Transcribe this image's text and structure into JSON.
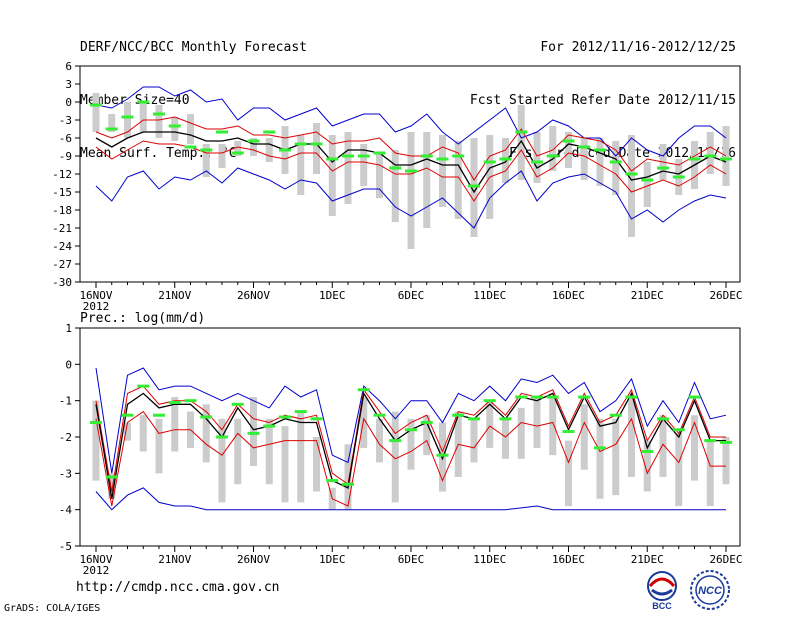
{
  "header": {
    "title": "DERF/NCC/BCC Monthly Forecast",
    "member_size": "Member Size=40",
    "variable": "Mean Surf. Temp.: °C",
    "period": "For 2012/11/16-2012/12/25",
    "fcst_started": "Fcst Started Refer Date 2012/11/15",
    "fcst_produced": "Fcst Produced Date 2012/11/16"
  },
  "footer": {
    "url": "http://cmdp.ncc.cma.gov.cn",
    "credit": "GrADS: COLA/IGES",
    "logo_bcc": "BCC",
    "logo_ncc": "NCC"
  },
  "colors": {
    "envelope": "#0000cc",
    "spread": "#dd0000",
    "mean": "#000000",
    "bar": "#cccccc",
    "marker": "#33ee33"
  },
  "chart_data": [
    {
      "type": "line",
      "title": "Mean Surf. Temp.: °C",
      "ylim": [
        -30,
        6
      ],
      "yticks": [
        6,
        3,
        0,
        -3,
        -6,
        -9,
        -12,
        -15,
        -18,
        -21,
        -24,
        -27,
        -30
      ],
      "xticks": [
        {
          "day": 0,
          "label": "16NOV"
        },
        {
          "day": 5,
          "label": "21NOV"
        },
        {
          "day": 10,
          "label": "26NOV"
        },
        {
          "day": 15,
          "label": "1DEC"
        },
        {
          "day": 20,
          "label": "6DEC"
        },
        {
          "day": 25,
          "label": "11DEC"
        },
        {
          "day": 30,
          "label": "16DEC"
        },
        {
          "day": 35,
          "label": "21DEC"
        },
        {
          "day": 40,
          "label": "26DEC"
        }
      ],
      "year_label": "2012",
      "series": [
        {
          "name": "max",
          "values": [
            -0.5,
            -1,
            0.5,
            2.5,
            2.5,
            1,
            2,
            0,
            0.5,
            -3,
            -1,
            -1,
            -3,
            -2,
            -1,
            -4,
            -3,
            -2,
            -2,
            -5,
            -4,
            -2,
            -5,
            -7,
            -5,
            -3,
            -1,
            -6,
            -5,
            -3,
            -4,
            -6,
            -6,
            -9,
            -6,
            -8,
            -9,
            -6,
            -4,
            -4,
            -6
          ]
        },
        {
          "name": "upper",
          "values": [
            -5,
            -6,
            -5,
            -3,
            -3,
            -2.5,
            -3.5,
            -4.5,
            -4.5,
            -4,
            -5.5,
            -5.5,
            -6,
            -5.5,
            -5,
            -7,
            -6.5,
            -6.5,
            -6,
            -8.5,
            -9,
            -9,
            -7.5,
            -8.5,
            -13,
            -9,
            -8,
            -4.5,
            -9,
            -8,
            -5.5,
            -6,
            -6.5,
            -8,
            -11.5,
            -9.5,
            -10,
            -10.5,
            -9,
            -7.5,
            -9
          ]
        },
        {
          "name": "mean",
          "values": [
            -6,
            -7.5,
            -6,
            -5,
            -5,
            -5,
            -5.5,
            -6.5,
            -6.5,
            -6,
            -7,
            -7,
            -8,
            -7,
            -7,
            -10,
            -8,
            -8,
            -8.5,
            -10.5,
            -10.5,
            -9.5,
            -10.5,
            -10.5,
            -15,
            -11,
            -10,
            -6.5,
            -11,
            -9.5,
            -7,
            -7.5,
            -8.5,
            -9.5,
            -13,
            -12.5,
            -11.5,
            -12,
            -10.5,
            -9,
            -10
          ]
        },
        {
          "name": "lower",
          "values": [
            -7.5,
            -9.5,
            -8,
            -6.5,
            -7,
            -7,
            -7.5,
            -8.5,
            -8.5,
            -7.5,
            -8,
            -9,
            -9.5,
            -8.5,
            -8.5,
            -11.5,
            -10,
            -10,
            -10.5,
            -12,
            -12,
            -11,
            -12.5,
            -12.5,
            -16.5,
            -12.5,
            -11.5,
            -8,
            -12.5,
            -11,
            -8.5,
            -9,
            -10.5,
            -12,
            -15,
            -14,
            -13,
            -14,
            -12.5,
            -10.5,
            -12
          ]
        },
        {
          "name": "min",
          "values": [
            -14,
            -16.5,
            -12.5,
            -11.5,
            -14.5,
            -12.5,
            -13,
            -11.5,
            -13.5,
            -11,
            -12,
            -13,
            -14.5,
            -13,
            -13.5,
            -16.5,
            -15.5,
            -14.5,
            -14.5,
            -17.5,
            -19,
            -17.5,
            -16,
            -18.5,
            -21,
            -16,
            -13.5,
            -11.5,
            -16.5,
            -13.5,
            -12.5,
            -12,
            -13.5,
            -15,
            -19.5,
            -18,
            -20,
            -18,
            -16.5,
            -15.5,
            -16
          ]
        },
        {
          "name": "bar_top",
          "values": [
            1.5,
            -2,
            0,
            0,
            -0.5,
            -2.5,
            -2,
            -7,
            -7,
            -6.5,
            -6,
            -6,
            -4,
            -5.5,
            -3.5,
            -5.5,
            -5,
            -7,
            -8.5,
            -8,
            -5,
            -5,
            -5.5,
            -6.5,
            -6,
            -5.5,
            -6,
            -0.5,
            -5,
            -4,
            -5,
            -6,
            -6,
            -6.5,
            -5.5,
            -10,
            -7,
            -9.5,
            -6.5,
            -5,
            -4
          ]
        },
        {
          "name": "bar_bottom",
          "values": [
            -5,
            -5,
            -6,
            -5,
            -6,
            -6.5,
            -7,
            -12.5,
            -11,
            -9,
            -9,
            -10,
            -12,
            -15.5,
            -12,
            -19,
            -17,
            -14,
            -16,
            -20,
            -24.5,
            -21,
            -17.5,
            -19.5,
            -22.5,
            -19.5,
            -13.5,
            -13,
            -13.5,
            -11.5,
            -11,
            -13,
            -14,
            -15.5,
            -22.5,
            -17.5,
            -13,
            -15.5,
            -14.5,
            -12,
            -14
          ]
        },
        {
          "name": "observed",
          "values": [
            -0.5,
            -4.5,
            -2.5,
            0,
            -2,
            -4,
            -7.5,
            -8,
            -5,
            -8.5,
            -6.5,
            -5,
            -8,
            -7,
            -7,
            -9.5,
            -9,
            -9,
            -8.5,
            -11,
            -11.5,
            -9,
            -9.5,
            -9,
            -14,
            -10,
            -9.5,
            -5,
            -10,
            -9,
            -6.5,
            -7.5,
            -8,
            -10,
            -12,
            -13,
            -11,
            -12.5,
            -9.5,
            -9,
            -9.5
          ]
        }
      ]
    },
    {
      "type": "line",
      "title": "Prec.: log(mm/d)",
      "ylim": [
        -5,
        1
      ],
      "yticks": [
        1,
        0,
        -1,
        -2,
        -3,
        -4,
        -5
      ],
      "xticks": [
        {
          "day": 0,
          "label": "16NOV"
        },
        {
          "day": 5,
          "label": "21NOV"
        },
        {
          "day": 10,
          "label": "26NOV"
        },
        {
          "day": 15,
          "label": "1DEC"
        },
        {
          "day": 20,
          "label": "6DEC"
        },
        {
          "day": 25,
          "label": "11DEC"
        },
        {
          "day": 30,
          "label": "16DEC"
        },
        {
          "day": 35,
          "label": "21DEC"
        },
        {
          "day": 40,
          "label": "26DEC"
        }
      ],
      "year_label": "2012",
      "series": [
        {
          "name": "max",
          "values": [
            -0.1,
            -3,
            -0.3,
            -0.1,
            -0.7,
            -0.6,
            -0.6,
            -0.8,
            -1,
            -0.8,
            -1,
            -1.2,
            -0.6,
            -0.9,
            -0.7,
            -2.5,
            -2.7,
            -0.6,
            -1,
            -1.5,
            -1,
            -1,
            -1.6,
            -0.8,
            -1,
            -0.6,
            -1,
            -0.4,
            -0.5,
            -0.3,
            -0.8,
            -0.5,
            -1.3,
            -1,
            -0.4,
            -1.7,
            -1,
            -1.6,
            -0.5,
            -1.5,
            -1.4
          ]
        },
        {
          "name": "upper",
          "values": [
            -1,
            -3.5,
            -0.8,
            -0.6,
            -1.1,
            -1,
            -1,
            -1.3,
            -1.8,
            -1.1,
            -1.5,
            -1.6,
            -1.4,
            -1.5,
            -1.4,
            -3,
            -3.3,
            -0.7,
            -1.3,
            -1.9,
            -1.6,
            -1.4,
            -2.4,
            -1.3,
            -1.4,
            -1,
            -1.4,
            -0.8,
            -0.9,
            -0.7,
            -1.7,
            -0.8,
            -1.6,
            -1.4,
            -0.7,
            -2.1,
            -1.4,
            -1.9,
            -0.9,
            -2,
            -2
          ]
        },
        {
          "name": "mean",
          "values": [
            -1.1,
            -3.7,
            -1.1,
            -0.8,
            -1.2,
            -1.1,
            -1.1,
            -1.5,
            -2,
            -1.2,
            -1.8,
            -1.7,
            -1.5,
            -1.6,
            -1.6,
            -3.2,
            -3.4,
            -0.8,
            -1.5,
            -2.1,
            -1.8,
            -1.6,
            -2.6,
            -1.4,
            -1.5,
            -1.1,
            -1.5,
            -0.9,
            -1,
            -0.8,
            -1.8,
            -0.9,
            -1.7,
            -1.6,
            -0.8,
            -2.3,
            -1.5,
            -2,
            -1,
            -2.1,
            -2.1
          ]
        },
        {
          "name": "lower",
          "values": [
            -1.5,
            -3.9,
            -1.6,
            -1.3,
            -1.9,
            -1.8,
            -1.8,
            -2.2,
            -2.5,
            -1.9,
            -2.3,
            -2.2,
            -2.1,
            -2.1,
            -2.1,
            -3.7,
            -3.9,
            -1.5,
            -2.2,
            -2.6,
            -2.4,
            -2.1,
            -3.2,
            -2.2,
            -2.3,
            -1.7,
            -2,
            -1.6,
            -1.7,
            -1.6,
            -2.7,
            -1.6,
            -2.4,
            -2.2,
            -1.5,
            -3,
            -2.2,
            -2.7,
            -1.6,
            -2.8,
            -2.8
          ]
        },
        {
          "name": "min",
          "values": [
            -3.5,
            -4,
            -3.6,
            -3.4,
            -3.8,
            -3.9,
            -3.9,
            -4,
            -4,
            -4,
            -4,
            -4,
            -4,
            -4,
            -4,
            -4,
            -4,
            -4,
            -4,
            -4,
            -4,
            -4,
            -4,
            -4,
            -4,
            -4,
            -4,
            -3.95,
            -3.9,
            -4,
            -4,
            -4,
            -4,
            -4,
            -4,
            -4,
            -4,
            -4,
            -4,
            -4,
            -4
          ]
        },
        {
          "name": "bar_top",
          "values": [
            -1,
            -3,
            -1.6,
            -1.4,
            -1.5,
            -0.9,
            -1.3,
            -1.1,
            -1.5,
            -1.5,
            -0.9,
            -1.5,
            -1.7,
            -1.3,
            -2,
            -3.4,
            -2.2,
            -0.9,
            -1.5,
            -1.3,
            -1.5,
            -1.4,
            -1.6,
            -1.3,
            -1.5,
            -1,
            -1.5,
            -1.2,
            -0.9,
            -0.9,
            -2.1,
            -1.1,
            -1.5,
            -1.5,
            -0.9,
            -2.1,
            -1.4,
            -1.9,
            -1.4,
            -2.1,
            -2
          ]
        },
        {
          "name": "bar_bottom",
          "values": [
            -3.2,
            -3.7,
            -2.1,
            -2.4,
            -3,
            -2.4,
            -2.3,
            -2.7,
            -3.8,
            -3.3,
            -2.8,
            -3.3,
            -3.8,
            -3.8,
            -3.5,
            -4,
            -4,
            -2.3,
            -2.7,
            -3.8,
            -2.9,
            -2.5,
            -3.5,
            -3.1,
            -2.7,
            -2.3,
            -2.6,
            -2.6,
            -2.3,
            -2.5,
            -3.9,
            -2.9,
            -3.7,
            -3.6,
            -3.1,
            -3.5,
            -3.1,
            -3.9,
            -3.2,
            -3.9,
            -3.3
          ]
        },
        {
          "name": "observed",
          "values": [
            -1.6,
            -3.1,
            -1.4,
            -0.6,
            -1.4,
            -1.05,
            -1,
            -1.45,
            -2,
            -1.1,
            -1.9,
            -1.7,
            -1.45,
            -1.3,
            -1.5,
            -3.2,
            -3.3,
            -0.7,
            -1.4,
            -2.1,
            -1.8,
            -1.6,
            -2.5,
            -1.4,
            -1.5,
            -1,
            -1.5,
            -0.9,
            -0.9,
            -0.9,
            -1.85,
            -0.9,
            -2.3,
            -1.4,
            -0.9,
            -2.4,
            -1.5,
            -1.8,
            -0.9,
            -2.1,
            -2.15
          ]
        }
      ]
    }
  ]
}
